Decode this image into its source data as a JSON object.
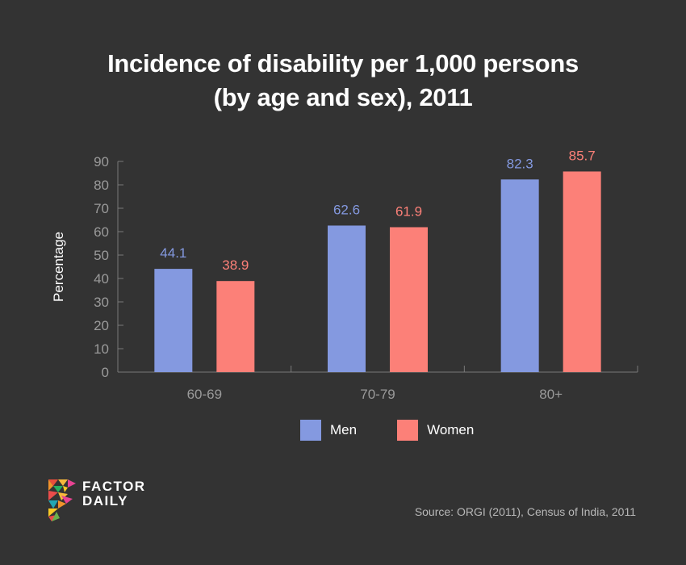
{
  "chart_data": {
    "type": "bar",
    "title": "Incidence of disability per 1,000 persons (by age and sex), 2011",
    "title_lines": [
      "Incidence of disability per 1,000 persons",
      "(by age and sex), 2011"
    ],
    "xlabel": "",
    "ylabel": "Percentage",
    "ylim": [
      0,
      90
    ],
    "yticks": [
      0,
      10,
      20,
      30,
      40,
      50,
      60,
      70,
      80,
      90
    ],
    "grid": false,
    "categories": [
      "60-69",
      "70-79",
      "80+"
    ],
    "series": [
      {
        "name": "Men",
        "color": "#8499e0",
        "label_color": "#8499e0",
        "values": [
          44.1,
          62.6,
          82.3
        ]
      },
      {
        "name": "Women",
        "color": "#fc8078",
        "label_color": "#fc8078",
        "values": [
          38.9,
          61.9,
          85.7
        ]
      }
    ],
    "legend_position": "bottom-center"
  },
  "legend": {
    "items": [
      {
        "label": "Men",
        "color": "#8499e0"
      },
      {
        "label": "Women",
        "color": "#fc8078"
      }
    ]
  },
  "branding": {
    "logo_line1": "FACTOR",
    "logo_line2": "DAILY"
  },
  "source": "Source: ORGI (2011), Census of India, 2011"
}
